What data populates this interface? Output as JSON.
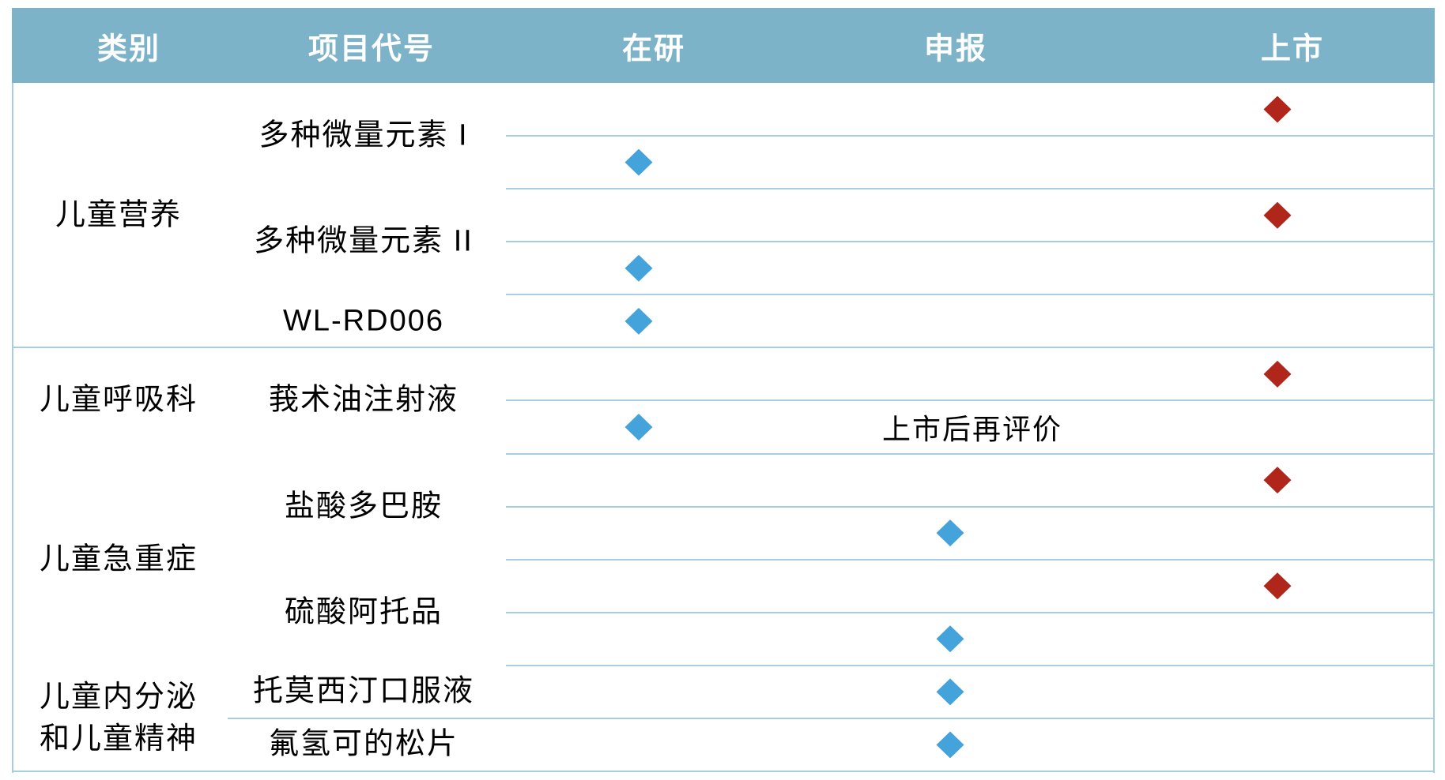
{
  "colors": {
    "header_bg": "#7cb3c9",
    "header_text": "#ffffff",
    "grid_line": "#a5cee1",
    "body_text": "#000000",
    "marker_red": "#b1261b",
    "marker_blue": "#44a3da"
  },
  "chart_data": {
    "type": "table",
    "columns": [
      "类别",
      "项目代号",
      "在研",
      "申报",
      "上市"
    ],
    "stages": [
      "在研",
      "申报",
      "上市"
    ],
    "legend_position": "none",
    "grid": true,
    "categories": [
      {
        "name": "儿童营养",
        "projects": [
          {
            "code": "多种微量元素 I",
            "markers": [
              {
                "stage": "上市",
                "color": "red"
              },
              {
                "stage": "在研",
                "color": "blue"
              }
            ]
          },
          {
            "code": "多种微量元素 II",
            "markers": [
              {
                "stage": "上市",
                "color": "red"
              },
              {
                "stage": "在研",
                "color": "blue"
              }
            ]
          },
          {
            "code": "WL-RD006",
            "markers": [
              {
                "stage": "在研",
                "color": "blue"
              }
            ]
          }
        ]
      },
      {
        "name": "儿童呼吸科",
        "projects": [
          {
            "code": "莪术油注射液",
            "markers": [
              {
                "stage": "上市",
                "color": "red"
              },
              {
                "stage": "在研",
                "color": "blue",
                "note": "上市后再评价"
              }
            ]
          }
        ]
      },
      {
        "name": "儿童急重症",
        "projects": [
          {
            "code": "盐酸多巴胺",
            "markers": [
              {
                "stage": "上市",
                "color": "red"
              },
              {
                "stage": "申报",
                "color": "blue"
              }
            ]
          },
          {
            "code": "硫酸阿托品",
            "markers": [
              {
                "stage": "上市",
                "color": "red"
              },
              {
                "stage": "申报",
                "color": "blue"
              }
            ]
          }
        ]
      },
      {
        "name": "儿童内分泌\n和儿童精神",
        "projects": [
          {
            "code": "托莫西汀口服液",
            "markers": [
              {
                "stage": "申报",
                "color": "blue"
              }
            ]
          },
          {
            "code": "氟氢可的松片",
            "markers": [
              {
                "stage": "申报",
                "color": "blue"
              }
            ]
          }
        ]
      }
    ]
  }
}
